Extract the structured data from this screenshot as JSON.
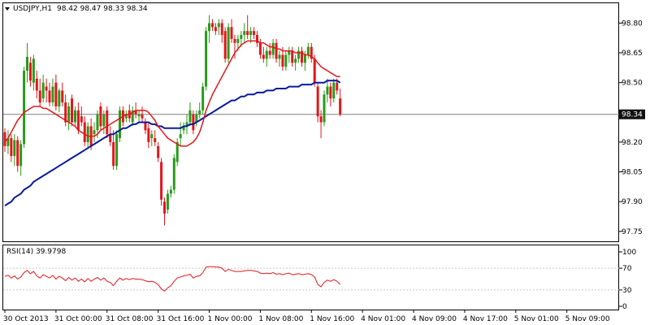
{
  "chart_data": {
    "type": "candlestick",
    "symbol_header": "USDJPY,H1",
    "ohlc_header": "98.42 98.47 98.33 98.34",
    "current_price_label": "98.34",
    "current_price": 98.34,
    "colors": {
      "up": "#2a9a1a",
      "down": "#e3161b",
      "ma_fast": "#e3161b",
      "ma_slow": "#0a1a9a",
      "grid": "#c8c8c8",
      "rsi": "#e3161b",
      "price_tag_bg": "#111111"
    },
    "price_axis": {
      "range": [
        97.7,
        98.9
      ],
      "ticks": [
        "98.80",
        "98.65",
        "98.50",
        "98.35",
        "98.20",
        "98.05",
        "97.90",
        "97.75"
      ]
    },
    "time_axis_labels": [
      "30 Oct 2013",
      "31 Oct 00:00",
      "31 Oct 08:00",
      "31 Oct 16:00",
      "1 Nov 00:00",
      "1 Nov 08:00",
      "1 Nov 16:00",
      "4 Nov 01:00",
      "4 Nov 09:00",
      "4 Nov 17:00",
      "5 Nov 01:00",
      "5 Nov 09:00"
    ],
    "time_label_bars": [
      0,
      16,
      32,
      48,
      64,
      80,
      96,
      112,
      128,
      144,
      160,
      176
    ],
    "candles": [
      [
        98.25,
        98.27,
        98.15,
        98.18
      ],
      [
        98.18,
        98.26,
        98.14,
        98.22
      ],
      [
        98.22,
        98.24,
        98.1,
        98.13
      ],
      [
        98.13,
        98.24,
        98.08,
        98.21
      ],
      [
        98.21,
        98.23,
        98.05,
        98.08
      ],
      [
        98.08,
        98.21,
        98.03,
        98.19
      ],
      [
        98.19,
        98.58,
        98.17,
        98.56
      ],
      [
        98.56,
        98.7,
        98.5,
        98.63
      ],
      [
        98.6,
        98.63,
        98.48,
        98.51
      ],
      [
        98.5,
        98.64,
        98.46,
        98.62
      ],
      [
        98.52,
        98.56,
        98.42,
        98.46
      ],
      [
        98.46,
        98.52,
        98.38,
        98.4
      ],
      [
        98.42,
        98.54,
        98.4,
        98.5
      ],
      [
        98.48,
        98.52,
        98.4,
        98.46
      ],
      [
        98.46,
        98.5,
        98.38,
        98.4
      ],
      [
        98.4,
        98.52,
        98.38,
        98.48
      ],
      [
        98.5,
        98.54,
        98.36,
        98.38
      ],
      [
        98.38,
        98.47,
        98.35,
        98.46
      ],
      [
        98.46,
        98.5,
        98.38,
        98.4
      ],
      [
        98.4,
        98.44,
        98.28,
        98.3
      ],
      [
        98.3,
        98.4,
        98.26,
        98.38
      ],
      [
        98.42,
        98.44,
        98.28,
        98.3
      ],
      [
        98.3,
        98.38,
        98.28,
        98.36
      ],
      [
        98.36,
        98.4,
        98.24,
        98.26
      ],
      [
        98.33,
        98.38,
        98.28,
        98.3
      ],
      [
        98.3,
        98.33,
        98.18,
        98.2
      ],
      [
        98.2,
        98.3,
        98.17,
        98.28
      ],
      [
        98.28,
        98.32,
        98.16,
        98.18
      ],
      [
        98.24,
        98.3,
        98.2,
        98.26
      ],
      [
        98.26,
        98.36,
        98.22,
        98.34
      ],
      [
        98.38,
        98.4,
        98.26,
        98.28
      ],
      [
        98.28,
        98.36,
        98.24,
        98.34
      ],
      [
        98.36,
        98.38,
        98.22,
        98.24
      ],
      [
        98.24,
        98.28,
        98.18,
        98.2
      ],
      [
        98.2,
        98.26,
        98.06,
        98.08
      ],
      [
        98.08,
        98.26,
        98.06,
        98.24
      ],
      [
        98.22,
        98.38,
        98.2,
        98.36
      ],
      [
        98.36,
        98.38,
        98.28,
        98.3
      ],
      [
        98.32,
        98.36,
        98.3,
        98.34
      ],
      [
        98.36,
        98.39,
        98.3,
        98.32
      ],
      [
        98.3,
        98.38,
        98.28,
        98.36
      ],
      [
        98.36,
        98.4,
        98.32,
        98.34
      ],
      [
        98.33,
        98.36,
        98.3,
        98.34
      ],
      [
        98.34,
        98.38,
        98.3,
        98.32
      ],
      [
        98.3,
        98.32,
        98.24,
        98.26
      ],
      [
        98.27,
        98.3,
        98.17,
        98.2
      ],
      [
        98.22,
        98.26,
        98.18,
        98.24
      ],
      [
        98.22,
        98.26,
        98.18,
        98.2
      ],
      [
        98.18,
        98.2,
        98.1,
        98.12
      ],
      [
        98.1,
        98.12,
        97.88,
        97.91
      ],
      [
        97.9,
        97.92,
        97.78,
        97.84
      ],
      [
        97.86,
        97.96,
        97.84,
        97.94
      ],
      [
        97.94,
        97.98,
        97.92,
        97.96
      ],
      [
        97.96,
        98.14,
        97.94,
        98.12
      ],
      [
        98.1,
        98.22,
        98.08,
        98.2
      ],
      [
        98.22,
        98.3,
        98.18,
        98.24
      ],
      [
        98.26,
        98.3,
        98.24,
        98.28
      ],
      [
        98.28,
        98.34,
        98.24,
        98.3
      ],
      [
        98.3,
        98.4,
        98.28,
        98.36
      ],
      [
        98.34,
        98.36,
        98.24,
        98.26
      ],
      [
        98.3,
        98.36,
        98.28,
        98.34
      ],
      [
        98.34,
        98.4,
        98.32,
        98.36
      ],
      [
        98.36,
        98.5,
        98.34,
        98.48
      ],
      [
        98.48,
        98.78,
        98.46,
        98.76
      ],
      [
        98.76,
        98.84,
        98.7,
        98.8
      ],
      [
        98.8,
        98.82,
        98.76,
        98.78
      ],
      [
        98.78,
        98.8,
        98.74,
        98.76
      ],
      [
        98.78,
        98.82,
        98.74,
        98.8
      ],
      [
        98.8,
        98.82,
        98.7,
        98.74
      ],
      [
        98.76,
        98.78,
        98.6,
        98.62
      ],
      [
        98.62,
        98.8,
        98.6,
        98.78
      ],
      [
        98.78,
        98.82,
        98.7,
        98.72
      ],
      [
        98.72,
        98.74,
        98.62,
        98.7
      ],
      [
        98.7,
        98.74,
        98.66,
        98.72
      ],
      [
        98.72,
        98.76,
        98.68,
        98.74
      ],
      [
        98.74,
        98.8,
        98.7,
        98.76
      ],
      [
        98.76,
        98.84,
        98.72,
        98.74
      ],
      [
        98.74,
        98.78,
        98.7,
        98.76
      ],
      [
        98.76,
        98.78,
        98.72,
        98.74
      ],
      [
        98.74,
        98.76,
        98.68,
        98.7
      ],
      [
        98.7,
        98.72,
        98.62,
        98.64
      ],
      [
        98.64,
        98.68,
        98.6,
        98.62
      ],
      [
        98.62,
        98.68,
        98.58,
        98.66
      ],
      [
        98.66,
        98.7,
        98.62,
        98.64
      ],
      [
        98.64,
        98.72,
        98.62,
        98.7
      ],
      [
        98.7,
        98.72,
        98.6,
        98.62
      ],
      [
        98.62,
        98.66,
        98.58,
        98.64
      ],
      [
        98.64,
        98.68,
        98.56,
        98.58
      ],
      [
        98.58,
        98.66,
        98.56,
        98.64
      ],
      [
        98.64,
        98.68,
        98.6,
        98.66
      ],
      [
        98.66,
        98.68,
        98.58,
        98.6
      ],
      [
        98.6,
        98.64,
        98.56,
        98.62
      ],
      [
        98.62,
        98.68,
        98.6,
        98.66
      ],
      [
        98.66,
        98.68,
        98.58,
        98.6
      ],
      [
        98.6,
        98.66,
        98.56,
        98.64
      ],
      [
        98.64,
        98.7,
        98.62,
        98.68
      ],
      [
        98.68,
        98.7,
        98.6,
        98.62
      ],
      [
        98.62,
        98.64,
        98.48,
        98.5
      ],
      [
        98.48,
        98.5,
        98.3,
        98.33
      ],
      [
        98.33,
        98.36,
        98.22,
        98.3
      ],
      [
        98.3,
        98.46,
        98.28,
        98.44
      ],
      [
        98.44,
        98.52,
        98.4,
        98.48
      ],
      [
        98.48,
        98.5,
        98.38,
        98.42
      ],
      [
        98.42,
        98.52,
        98.4,
        98.5
      ],
      [
        98.5,
        98.52,
        98.44,
        98.46
      ],
      [
        98.42,
        98.47,
        98.33,
        98.34
      ]
    ],
    "ma_fast": [
      98.2,
      98.22,
      98.25,
      98.28,
      98.31,
      98.33,
      98.35,
      98.36,
      98.37,
      98.38,
      98.38,
      98.38,
      98.37,
      98.37,
      98.36,
      98.35,
      98.34,
      98.33,
      98.32,
      98.31,
      98.3,
      98.29,
      98.28,
      98.26,
      98.25,
      98.24,
      98.23,
      98.23,
      98.23,
      98.24,
      98.26,
      98.27,
      98.28,
      98.29,
      98.3,
      98.31,
      98.32,
      98.33,
      98.34,
      98.34,
      98.35,
      98.36,
      98.36,
      98.36,
      98.36,
      98.35,
      98.33,
      98.31,
      98.28,
      98.26,
      98.24,
      98.22,
      98.21,
      98.2,
      98.19,
      98.18,
      98.18,
      98.18,
      98.19,
      98.2,
      98.22,
      98.25,
      98.3,
      98.36,
      98.4,
      98.44,
      98.47,
      98.5,
      98.53,
      98.56,
      98.59,
      98.62,
      98.65,
      98.67,
      98.69,
      98.7,
      98.71,
      98.71,
      98.71,
      98.71,
      98.7,
      98.7,
      98.69,
      98.68,
      98.68,
      98.67,
      98.67,
      98.66,
      98.66,
      98.66,
      98.66,
      98.65,
      98.65,
      98.65,
      98.64,
      98.64,
      98.63,
      98.62,
      98.6,
      98.58,
      98.57,
      98.56,
      98.55,
      98.54,
      98.53,
      98.53
    ],
    "ma_slow": [
      97.88,
      97.89,
      97.9,
      97.92,
      97.93,
      97.94,
      97.96,
      97.97,
      97.98,
      98.0,
      98.01,
      98.02,
      98.03,
      98.04,
      98.05,
      98.06,
      98.07,
      98.08,
      98.09,
      98.1,
      98.11,
      98.12,
      98.13,
      98.14,
      98.15,
      98.16,
      98.17,
      98.18,
      98.19,
      98.2,
      98.21,
      98.22,
      98.23,
      98.24,
      98.24,
      98.25,
      98.26,
      98.27,
      98.27,
      98.28,
      98.29,
      98.29,
      98.3,
      98.3,
      98.3,
      98.3,
      98.29,
      98.29,
      98.28,
      98.28,
      98.27,
      98.27,
      98.27,
      98.27,
      98.27,
      98.27,
      98.28,
      98.28,
      98.29,
      98.29,
      98.3,
      98.31,
      98.32,
      98.33,
      98.34,
      98.35,
      98.36,
      98.37,
      98.38,
      98.39,
      98.4,
      98.41,
      98.41,
      98.42,
      98.43,
      98.43,
      98.44,
      98.44,
      98.44,
      98.45,
      98.45,
      98.45,
      98.46,
      98.46,
      98.46,
      98.47,
      98.47,
      98.47,
      98.47,
      98.48,
      98.48,
      98.48,
      98.48,
      98.49,
      98.49,
      98.49,
      98.49,
      98.5,
      98.5,
      98.5,
      98.5,
      98.51,
      98.51,
      98.51,
      98.51,
      98.5
    ],
    "rsi": {
      "label": "RSI(14) 39.9798",
      "ticks": [
        "100",
        "70",
        "30",
        "0"
      ],
      "tick_values": [
        100,
        70,
        30,
        0
      ],
      "levels": [
        70,
        30
      ],
      "values": [
        55,
        57,
        52,
        56,
        50,
        54,
        62,
        66,
        60,
        64,
        56,
        52,
        58,
        55,
        52,
        57,
        50,
        55,
        52,
        47,
        53,
        48,
        52,
        46,
        50,
        45,
        51,
        46,
        50,
        53,
        48,
        52,
        46,
        44,
        38,
        46,
        52,
        48,
        51,
        49,
        51,
        50,
        50,
        49,
        47,
        45,
        46,
        44,
        40,
        32,
        28,
        34,
        38,
        46,
        52,
        54,
        56,
        57,
        59,
        52,
        55,
        56,
        62,
        72,
        73,
        73,
        72,
        72,
        70,
        64,
        68,
        66,
        64,
        64,
        64,
        65,
        66,
        66,
        65,
        64,
        61,
        60,
        61,
        60,
        62,
        59,
        60,
        58,
        60,
        61,
        58,
        59,
        60,
        58,
        59,
        60,
        58,
        54,
        40,
        36,
        44,
        48,
        46,
        49,
        46,
        40
      ]
    }
  }
}
